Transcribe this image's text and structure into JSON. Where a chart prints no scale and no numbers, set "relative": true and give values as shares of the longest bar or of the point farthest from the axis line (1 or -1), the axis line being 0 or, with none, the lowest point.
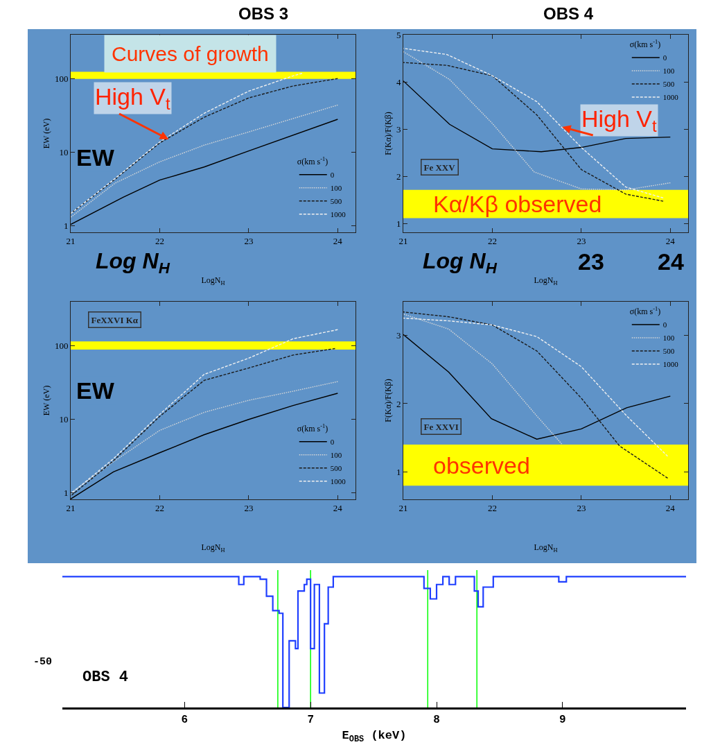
{
  "chart_data": [
    {
      "type": "other",
      "annotations": [
        "OBS 3",
        "OBS 4"
      ]
    },
    {
      "type": "line",
      "xlabel": "LogN$_{H}$",
      "ylabel": "EW (eV)",
      "log": true,
      "xlim": [
        21,
        24.2
      ],
      "xticks": [
        21,
        22,
        23,
        24
      ],
      "ylim": [
        0.81,
        400
      ],
      "yticks": [
        1,
        10,
        100
      ],
      "grid": false,
      "legend": "bottom right",
      "legend_title": "σ(km s$^{-1}$)",
      "marker": "none",
      "annotations": [
        "Curves of growth",
        "EW",
        "Log N$_{H}$",
        {
          "text": "High V$_{t}$",
          "x": 22.1,
          "y": 15
        }
      ],
      "bands": [
        {
          "axis": "y",
          "from": 100,
          "to": 125,
          "color": "#ffff00"
        }
      ],
      "series": [
        {
          "name": "0",
          "color": "#000000",
          "line_style": "solid",
          "x": [
            21,
            21.59,
            22,
            22.5,
            23,
            24
          ],
          "values": [
            1.04,
            2.44,
            4.17,
            6.3,
            10.4,
            28.1
          ]
        },
        {
          "name": "100",
          "color": "#d8d8d8",
          "line_style": "dotted",
          "x": [
            21,
            21.5,
            22,
            22.5,
            23,
            24
          ],
          "values": [
            1.3,
            3.8,
            7.4,
            12.5,
            18.9,
            44
          ]
        },
        {
          "name": "500",
          "color": "#1a1a1a",
          "line_style": "dashed",
          "x": [
            21,
            21.5,
            22,
            22.5,
            23,
            23.5,
            24
          ],
          "values": [
            1.46,
            4.3,
            13.4,
            30,
            55,
            80,
            101
          ]
        },
        {
          "name": "1000",
          "color": "#f0f0f0",
          "line_style": "dashed",
          "x": [
            21,
            21.5,
            22,
            22.5,
            23,
            23.5,
            23.6
          ],
          "values": [
            1.46,
            4.4,
            13.8,
            34,
            68,
            110,
            119
          ]
        }
      ]
    },
    {
      "type": "line",
      "xlabel": "LogN$_{H}$",
      "ylabel": "F(Kα)/F(Kβ)",
      "xlim": [
        21,
        24.2
      ],
      "xticks": [
        21,
        22,
        23,
        24
      ],
      "ylim": [
        0.81,
        5
      ],
      "yticks": [
        1,
        2,
        3,
        4,
        5
      ],
      "grid": false,
      "legend": "top right",
      "legend_title": "σ(km s$^{-1}$)",
      "marker": "none",
      "annotations": [
        "Fe XXV",
        "Log N$_{H}$",
        "23",
        "24",
        {
          "text": "High V$_{t}$",
          "x": 22.78,
          "y": 3.04
        }
      ],
      "bands": [
        {
          "axis": "y",
          "from": 1.11,
          "to": 1.71,
          "color": "#ffff00",
          "label": "Kα/Kβ observed"
        }
      ],
      "series": [
        {
          "name": "0",
          "color": "#000000",
          "line_style": "solid",
          "x": [
            21,
            21.52,
            22,
            22.55,
            23,
            23.5,
            24
          ],
          "values": [
            4.02,
            3.1,
            2.58,
            2.52,
            2.61,
            2.8,
            2.83
          ]
        },
        {
          "name": "100",
          "color": "#d8d8d8",
          "line_style": "dotted",
          "x": [
            21,
            21.52,
            22,
            22.47,
            23,
            23.5,
            24
          ],
          "values": [
            4.64,
            4.05,
            3.12,
            2.09,
            1.73,
            1.71,
            1.86
          ]
        },
        {
          "name": "500",
          "color": "#1a1a1a",
          "line_style": "dashed",
          "x": [
            21,
            21.49,
            22,
            22.5,
            23,
            23.5,
            23.92
          ],
          "values": [
            4.41,
            4.35,
            4.13,
            3.3,
            2.14,
            1.62,
            1.47
          ]
        },
        {
          "name": "1000",
          "color": "#f0f0f0",
          "line_style": "dashed",
          "x": [
            21,
            21.49,
            22,
            22.5,
            23,
            23.5,
            23.92
          ],
          "values": [
            4.71,
            4.58,
            4.13,
            3.58,
            2.61,
            1.77,
            1.54
          ]
        }
      ]
    },
    {
      "type": "line",
      "xlabel": "LogN$_{H}$",
      "ylabel": "EW (eV)",
      "log": true,
      "xlim": [
        21,
        24.2
      ],
      "xticks": [
        21,
        22,
        23,
        24
      ],
      "ylim": [
        0.82,
        398
      ],
      "yticks": [
        1,
        10,
        100
      ],
      "grid": false,
      "legend": "bottom right",
      "legend_title": "σ(km s$^{-1}$)",
      "marker": "none",
      "annotations": [
        "FeXXVI Kα",
        "EW"
      ],
      "bands": [
        {
          "axis": "y",
          "from": 89,
          "to": 115,
          "color": "#ffff00"
        }
      ],
      "series": [
        {
          "name": "0",
          "color": "#000000",
          "line_style": "solid",
          "x": [
            21,
            21.48,
            22,
            22.5,
            23,
            23.5,
            24
          ],
          "values": [
            0.83,
            1.94,
            3.53,
            6.2,
            10,
            15.5,
            22.7
          ]
        },
        {
          "name": "100",
          "color": "#d8d8d8",
          "line_style": "dotted",
          "x": [
            21,
            21.48,
            22,
            22.5,
            23,
            23.5,
            24
          ],
          "values": [
            1,
            2.66,
            7.1,
            12.5,
            18.2,
            24.2,
            32.7
          ]
        },
        {
          "name": "500",
          "color": "#1a1a1a",
          "line_style": "dashed",
          "x": [
            21,
            21.48,
            22,
            22.5,
            23,
            23.5,
            23.97
          ],
          "values": [
            0.91,
            2.74,
            11,
            34,
            50,
            75,
            92
          ]
        },
        {
          "name": "1000",
          "color": "#f0f0f0",
          "line_style": "dashed",
          "x": [
            21,
            21.48,
            22,
            22.5,
            23,
            23.5,
            24
          ],
          "values": [
            0.97,
            2.92,
            11.7,
            41,
            68,
            125,
            166
          ]
        }
      ]
    },
    {
      "type": "line",
      "xlabel": "LogN$_{H}$",
      "ylabel": "F(Kα)/F(Kβ)",
      "xlim": [
        21,
        24.2
      ],
      "xticks": [
        21,
        22,
        23,
        24
      ],
      "ylim": [
        0.6,
        3.49
      ],
      "yticks": [
        1,
        2,
        3
      ],
      "grid": false,
      "legend": "top right",
      "legend_title": "σ(km s$^{-1}$)",
      "marker": "none",
      "annotations": [
        "Fe XXVI"
      ],
      "bands": [
        {
          "axis": "y",
          "from": 0.8,
          "to": 1.4,
          "color": "#ffff00",
          "label": "observed"
        }
      ],
      "series": [
        {
          "name": "0",
          "color": "#000000",
          "line_style": "solid",
          "x": [
            21,
            21.51,
            21.99,
            22.5,
            23,
            23.51,
            24
          ],
          "values": [
            3.01,
            2.46,
            1.78,
            1.48,
            1.63,
            1.94,
            2.11
          ]
        },
        {
          "name": "100",
          "color": "#d8d8d8",
          "line_style": "dotted",
          "x": [
            21,
            21.51,
            22,
            22.5,
            22.78
          ],
          "values": [
            3.31,
            3.09,
            2.58,
            1.82,
            1.41
          ]
        },
        {
          "name": "500",
          "color": "#1a1a1a",
          "line_style": "dashed",
          "x": [
            21,
            21.51,
            22,
            22.5,
            23,
            23.43,
            23.97
          ],
          "values": [
            3.34,
            3.27,
            3.15,
            2.77,
            2.08,
            1.38,
            0.91
          ]
        },
        {
          "name": "1000",
          "color": "#f0f0f0",
          "line_style": "dashed",
          "x": [
            21,
            21.51,
            22,
            22.5,
            23,
            23.51,
            23.97
          ],
          "values": [
            3.25,
            3.21,
            3.15,
            2.98,
            2.54,
            1.82,
            1.23
          ]
        }
      ]
    },
    {
      "type": "step",
      "relative": true,
      "xlabel": "E$_{OBS}$ (keV)",
      "xlim": [
        5.03,
        9.98
      ],
      "xticks": [
        6,
        7,
        8,
        9
      ],
      "grid": false,
      "marker": "none",
      "annotations": [
        "OBS 4",
        "-50"
      ],
      "ref_lines": [
        {
          "axis": "x",
          "value": 6.74,
          "color": "#00ff00"
        },
        {
          "axis": "x",
          "value": 7.0,
          "color": "#00ff00"
        },
        {
          "axis": "x",
          "value": 7.93,
          "color": "#00ff00"
        },
        {
          "axis": "x",
          "value": 8.32,
          "color": "#00ff00"
        }
      ],
      "series": [
        {
          "color": "#1f3fff",
          "x": [
            5.03,
            6.43,
            6.47,
            6.6,
            6.65,
            6.7,
            6.75,
            6.78,
            6.83,
            6.88,
            6.9,
            6.95,
            6.97,
            7.0,
            7.03,
            7.07,
            7.11,
            7.14,
            7.18,
            7.9,
            7.95,
            8.0,
            8.05,
            8.1,
            8.15,
            8.3,
            8.33,
            8.37,
            8.45,
            8.97,
            9.03,
            9.98
          ],
          "values": [
            1,
            0.94,
            1,
            0.98,
            0.85,
            0.74,
            0.72,
            0,
            0.51,
            0.45,
            0.89,
            0.94,
            0.98,
            0.45,
            0.94,
            0.11,
            0.64,
            0.92,
            1,
            0.91,
            0.83,
            0.94,
            1,
            0.94,
            1,
            0.89,
            0.77,
            0.92,
            1,
            0.96,
            1,
            1
          ]
        }
      ]
    }
  ]
}
